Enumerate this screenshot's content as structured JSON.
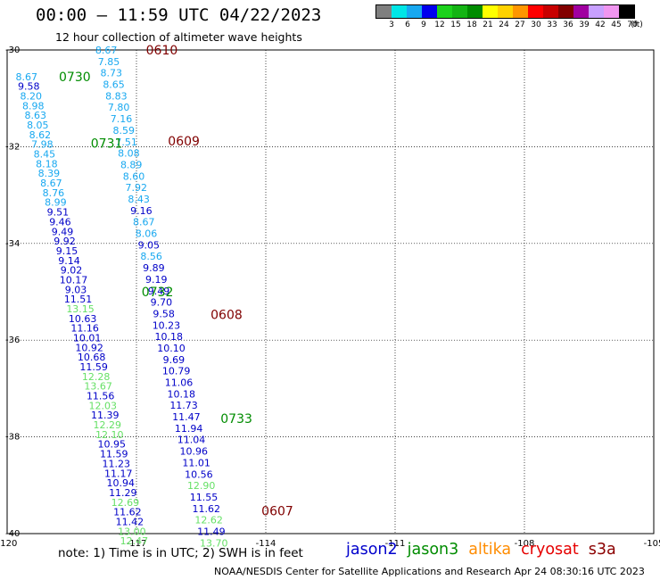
{
  "title": "00:00 – 11:59 UTC 04/22/2023",
  "subtitle": "12 hour collection of altimeter wave heights",
  "colorbar": {
    "colors": [
      "#7f7f7f",
      "#00e6e6",
      "#18a8f0",
      "#0000ee",
      "#1cd21c",
      "#14b414",
      "#008c00",
      "#ffff00",
      "#ffd200",
      "#ff9600",
      "#ff0000",
      "#c80000",
      "#820000",
      "#a000a0",
      "#c8a0ff",
      "#f096f0",
      "#000000"
    ],
    "labels": [
      "3",
      "6",
      "9",
      "12",
      "15",
      "18",
      "21",
      "24",
      "27",
      "30",
      "33",
      "36",
      "39",
      "42",
      "45",
      "70"
    ],
    "unit": "(ft)"
  },
  "map": {
    "lat_labels": [
      "-30",
      "-32",
      "-34",
      "-36",
      "-38",
      "-40"
    ],
    "lon_labels": [
      "-120",
      "-117",
      "-114",
      "-111",
      "-108",
      "-105"
    ],
    "time_labels": [
      {
        "text": "0610",
        "lon": -116.78,
        "lat": -30.0
      },
      {
        "text": "0730",
        "lon": -118.8,
        "lat": -30.55
      },
      {
        "text": "0609",
        "lon": -116.27,
        "lat": -31.88
      },
      {
        "text": "0731",
        "lon": -118.06,
        "lat": -31.93
      },
      {
        "text": "0732",
        "lon": -116.88,
        "lat": -35.0
      },
      {
        "text": "0608",
        "lon": -115.28,
        "lat": -35.47
      },
      {
        "text": "0733",
        "lon": -115.05,
        "lat": -37.62
      },
      {
        "text": "0607",
        "lon": -114.1,
        "lat": -39.53
      }
    ],
    "tracks": [
      {
        "name": "jason2 track 0610-0607",
        "lon_start": -117.7,
        "lon_step": 0.058,
        "lat_start": -30.0,
        "lat_step": -0.237,
        "values": [
          {
            "v": "8.67",
            "c": "#18a8f0"
          },
          {
            "v": "7.85",
            "c": "#18a8f0"
          },
          {
            "v": "8.73",
            "c": "#18a8f0"
          },
          {
            "v": "8.65",
            "c": "#18a8f0"
          },
          {
            "v": "8.83",
            "c": "#18a8f0"
          },
          {
            "v": "7.80",
            "c": "#18a8f0"
          },
          {
            "v": "7.16",
            "c": "#18a8f0"
          },
          {
            "v": "8.59",
            "c": "#18a8f0"
          },
          {
            "v": "7.51",
            "c": "#18a8f0"
          },
          {
            "v": "8.08",
            "c": "#18a8f0"
          },
          {
            "v": "8.89",
            "c": "#18a8f0"
          },
          {
            "v": "8.60",
            "c": "#18a8f0"
          },
          {
            "v": "7.92",
            "c": "#18a8f0"
          },
          {
            "v": "8.43",
            "c": "#18a8f0"
          },
          {
            "v": "9.16",
            "c": "#0000c8"
          },
          {
            "v": "8.67",
            "c": "#18a8f0"
          },
          {
            "v": "8.06",
            "c": "#18a8f0"
          },
          {
            "v": "9.05",
            "c": "#0000c8"
          },
          {
            "v": "8.56",
            "c": "#18a8f0"
          },
          {
            "v": "9.89",
            "c": "#0000c8"
          },
          {
            "v": "9.19",
            "c": "#0000c8"
          },
          {
            "v": "9.49",
            "c": "#0000c8"
          },
          {
            "v": "9.70",
            "c": "#0000c8"
          },
          {
            "v": "9.58",
            "c": "#0000c8"
          },
          {
            "v": "10.23",
            "c": "#0000c8"
          },
          {
            "v": "10.18",
            "c": "#0000c8"
          },
          {
            "v": "10.10",
            "c": "#0000c8"
          },
          {
            "v": "9.69",
            "c": "#0000c8"
          },
          {
            "v": "10.79",
            "c": "#0000c8"
          },
          {
            "v": "11.06",
            "c": "#0000c8"
          },
          {
            "v": "10.18",
            "c": "#0000c8"
          },
          {
            "v": "11.73",
            "c": "#0000c8"
          },
          {
            "v": "11.47",
            "c": "#0000c8"
          },
          {
            "v": "11.94",
            "c": "#0000c8"
          },
          {
            "v": "11.04",
            "c": "#0000c8"
          },
          {
            "v": "10.96",
            "c": "#0000c8"
          },
          {
            "v": "11.01",
            "c": "#0000c8"
          },
          {
            "v": "10.56",
            "c": "#0000c8"
          },
          {
            "v": "12.90",
            "c": "#66e066"
          },
          {
            "v": "11.55",
            "c": "#0000c8"
          },
          {
            "v": "11.62",
            "c": "#0000c8"
          },
          {
            "v": "12.62",
            "c": "#66e066"
          },
          {
            "v": "11.49",
            "c": "#0000c8"
          },
          {
            "v": "13.70",
            "c": "#66e066"
          }
        ]
      },
      {
        "name": "jason3 track 0730-0733",
        "lon_start": -119.55,
        "lon_step": 0.052,
        "lat_start": -30.55,
        "lat_step": -0.2,
        "values": [
          {
            "v": "8.67",
            "c": "#18a8f0"
          },
          {
            "v": "9.58",
            "c": "#0000c8"
          },
          {
            "v": "8.20",
            "c": "#18a8f0"
          },
          {
            "v": "8.98",
            "c": "#18a8f0"
          },
          {
            "v": "8.63",
            "c": "#18a8f0"
          },
          {
            "v": "8.05",
            "c": "#18a8f0"
          },
          {
            "v": "8.62",
            "c": "#18a8f0"
          },
          {
            "v": "7.98",
            "c": "#18a8f0"
          },
          {
            "v": "8.45",
            "c": "#18a8f0"
          },
          {
            "v": "8.18",
            "c": "#18a8f0"
          },
          {
            "v": "8.39",
            "c": "#18a8f0"
          },
          {
            "v": "8.67",
            "c": "#18a8f0"
          },
          {
            "v": "8.76",
            "c": "#18a8f0"
          },
          {
            "v": "8.99",
            "c": "#18a8f0"
          },
          {
            "v": "9.51",
            "c": "#0000c8"
          },
          {
            "v": "9.46",
            "c": "#0000c8"
          },
          {
            "v": "9.49",
            "c": "#0000c8"
          },
          {
            "v": "9.92",
            "c": "#0000c8"
          },
          {
            "v": "9.15",
            "c": "#0000c8"
          },
          {
            "v": "9.14",
            "c": "#0000c8"
          },
          {
            "v": "9.02",
            "c": "#0000c8"
          },
          {
            "v": "10.17",
            "c": "#0000c8"
          },
          {
            "v": "9.03",
            "c": "#0000c8"
          },
          {
            "v": "11.51",
            "c": "#0000c8"
          },
          {
            "v": "13.15",
            "c": "#66e066"
          },
          {
            "v": "10.63",
            "c": "#0000c8"
          },
          {
            "v": "11.16",
            "c": "#0000c8"
          },
          {
            "v": "10.01",
            "c": "#0000c8"
          },
          {
            "v": "10.92",
            "c": "#0000c8"
          },
          {
            "v": "10.68",
            "c": "#0000c8"
          },
          {
            "v": "11.59",
            "c": "#0000c8"
          },
          {
            "v": "12.28",
            "c": "#66e066"
          },
          {
            "v": "13.67",
            "c": "#66e066"
          },
          {
            "v": "11.56",
            "c": "#0000c8"
          },
          {
            "v": "12.03",
            "c": "#66e066"
          },
          {
            "v": "11.39",
            "c": "#0000c8"
          },
          {
            "v": "12.29",
            "c": "#66e066"
          },
          {
            "v": "12.10",
            "c": "#66e066"
          },
          {
            "v": "10.95",
            "c": "#0000c8"
          },
          {
            "v": "11.59",
            "c": "#0000c8"
          },
          {
            "v": "11.23",
            "c": "#0000c8"
          },
          {
            "v": "11.17",
            "c": "#0000c8"
          },
          {
            "v": "10.94",
            "c": "#0000c8"
          },
          {
            "v": "11.29",
            "c": "#0000c8"
          },
          {
            "v": "12.69",
            "c": "#66e066"
          },
          {
            "v": "11.62",
            "c": "#0000c8"
          },
          {
            "v": "11.42",
            "c": "#0000c8"
          },
          {
            "v": "13.00",
            "c": "#66e066"
          },
          {
            "v": "12.47",
            "c": "#66e066"
          }
        ]
      }
    ]
  },
  "note": "note:  1) Time is in UTC;  2) SWH is in feet",
  "missions": [
    {
      "name": "jason2",
      "color": "#0000cc"
    },
    {
      "name": "jason3",
      "color": "#008c00"
    },
    {
      "name": "altika",
      "color": "#ff8c00"
    },
    {
      "name": "cryosat",
      "color": "#e60000"
    },
    {
      "name": "s3a",
      "color": "#8b0000"
    }
  ],
  "credit": "NOAA/NESDIS Center for Satellite Applications and Research   Apr 24 08:30:16 UTC 2023"
}
